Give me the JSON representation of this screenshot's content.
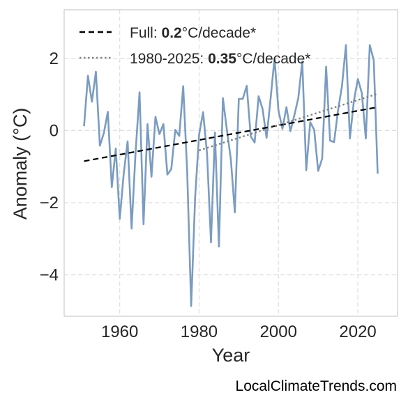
{
  "chart_data": {
    "type": "line",
    "xlabel": "Year",
    "ylabel": "Anomaly (°C)",
    "xlim": [
      1946,
      2030
    ],
    "ylim": [
      -5.15,
      3.35
    ],
    "x_ticks": [
      1960,
      1980,
      2000,
      2020
    ],
    "y_ticks": [
      -4,
      -2,
      0,
      2
    ],
    "y_tick_labels": [
      "−4",
      "−2",
      "0",
      "2"
    ],
    "grid": true,
    "legend_position": "top-left",
    "series": [
      {
        "kind": "data",
        "color": "#7b9cc1",
        "x": [
          1951,
          1952,
          1953,
          1954,
          1955,
          1956,
          1957,
          1958,
          1959,
          1960,
          1961,
          1962,
          1963,
          1964,
          1965,
          1966,
          1967,
          1968,
          1969,
          1970,
          1971,
          1972,
          1973,
          1974,
          1975,
          1976,
          1977,
          1978,
          1979,
          1980,
          1981,
          1982,
          1983,
          1984,
          1985,
          1986,
          1987,
          1988,
          1989,
          1990,
          1991,
          1992,
          1993,
          1994,
          1995,
          1996,
          1997,
          1998,
          1999,
          2000,
          2001,
          2002,
          2003,
          2004,
          2005,
          2006,
          2007,
          2008,
          2009,
          2010,
          2011,
          2012,
          2013,
          2014,
          2015,
          2016,
          2017,
          2018,
          2019,
          2020,
          2021,
          2022,
          2023,
          2024,
          2025
        ],
        "values": [
          0.12,
          1.52,
          0.8,
          1.63,
          -0.42,
          -0.07,
          0.52,
          -1.57,
          -0.5,
          -2.45,
          -1.2,
          -0.3,
          -2.72,
          -0.6,
          1.06,
          -2.6,
          0.18,
          -1.28,
          0.38,
          -0.1,
          0.18,
          -1.22,
          -1.07,
          0.02,
          -0.15,
          1.23,
          -1.15,
          -4.87,
          -1.85,
          -0.11,
          0.51,
          -0.65,
          -3.1,
          -0.05,
          -3.22,
          0.9,
          0.02,
          -0.8,
          -2.27,
          0.88,
          0.88,
          1.24,
          -0.16,
          -0.33,
          0.95,
          0.6,
          -0.2,
          0.87,
          2.0,
          0.55,
          0.05,
          0.65,
          -0.02,
          0.42,
          0.9,
          1.92,
          -1.1,
          0.23,
          0.02,
          -1.12,
          -0.78,
          1.77,
          -0.28,
          -0.32,
          0.55,
          1.23,
          2.37,
          -0.22,
          0.82,
          1.43,
          1.04,
          -0.22,
          2.37,
          1.95,
          -1.2
        ]
      },
      {
        "kind": "trend",
        "name": "Full",
        "rate": "0.2",
        "unit": "°C/decade*",
        "color": "#000000",
        "style": "dashed",
        "x": [
          1951,
          2025
        ],
        "values": [
          -0.85,
          0.65
        ]
      },
      {
        "kind": "trend",
        "name": "1980-2025",
        "rate": "0.35",
        "unit": "°C/decade*",
        "color": "#808080",
        "style": "dotted",
        "x": [
          1980,
          2025
        ],
        "values": [
          -0.55,
          1.02
        ]
      }
    ]
  },
  "credit": "LocalClimateTrends.com"
}
